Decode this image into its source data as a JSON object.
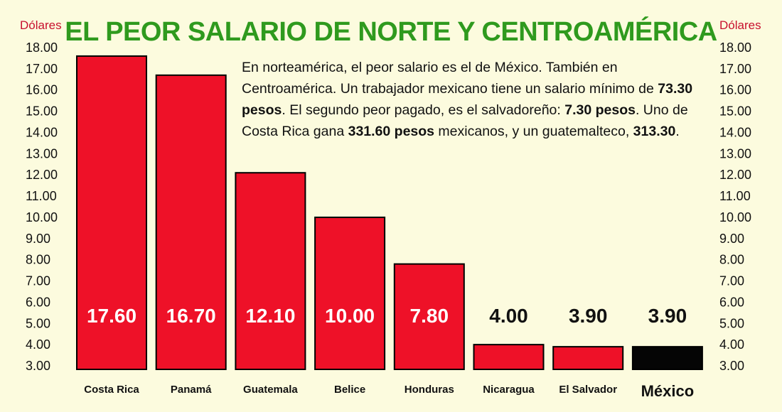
{
  "title": "EL PEOR SALARIO DE NORTE Y CENTROAMÉRICA",
  "unit_left": "Dólares",
  "unit_right": "Dólares",
  "description": [
    {
      "text": "En norteamérica, el peor salario es el de México. También en Centroamérica. Un trabajador mexicano tiene un salario mínimo de ",
      "bold": false
    },
    {
      "text": "73.30 pesos",
      "bold": true
    },
    {
      "text": ". El segundo peor pagado, es el salvadoreño: ",
      "bold": false
    },
    {
      "text": "7.30 pesos",
      "bold": true
    },
    {
      "text": ". Uno de Costa Rica gana ",
      "bold": false
    },
    {
      "text": "331.60 pesos",
      "bold": true
    },
    {
      "text": " mexicanos, y un guatemalteco, ",
      "bold": false
    },
    {
      "text": "313.30",
      "bold": true
    },
    {
      "text": ".",
      "bold": false
    }
  ],
  "colors": {
    "background": "#fcfbde",
    "title": "#2f9a1e",
    "bar": "#ee1128",
    "highlight_bar": "#050505",
    "outline": "#000000",
    "unit_label": "#c8102e",
    "inside_label": "#ffffff",
    "outside_label": "#111111"
  },
  "chart_data": {
    "type": "bar",
    "title": "EL PEOR SALARIO DE NORTE Y CENTROAMÉRICA",
    "ylabel": "Dólares",
    "categories": [
      "Costa Rica",
      "Panamá",
      "Guatemala",
      "Belice",
      "Honduras",
      "Nicaragua",
      "El Salvador",
      "México"
    ],
    "values": [
      17.6,
      16.7,
      12.1,
      10.0,
      7.8,
      4.0,
      3.9,
      3.9
    ],
    "value_labels": [
      "17.60",
      "16.70",
      "12.10",
      "10.00",
      "7.80",
      "4.00",
      "3.90",
      "3.90"
    ],
    "highlight": "México",
    "ylim": [
      3.0,
      18.0
    ],
    "yticks": [
      3,
      4,
      5,
      6,
      7,
      8,
      9,
      10,
      11,
      12,
      13,
      14,
      15,
      16,
      17,
      18
    ],
    "ytick_labels": [
      "3.00",
      "4.00",
      "5.00",
      "6.00",
      "7.00",
      "8.00",
      "9.00",
      "10.00",
      "11.00",
      "12.00",
      "13.00",
      "14.00",
      "15.00",
      "16.00",
      "17.00",
      "18.00"
    ],
    "grid": false,
    "legend": "none"
  }
}
